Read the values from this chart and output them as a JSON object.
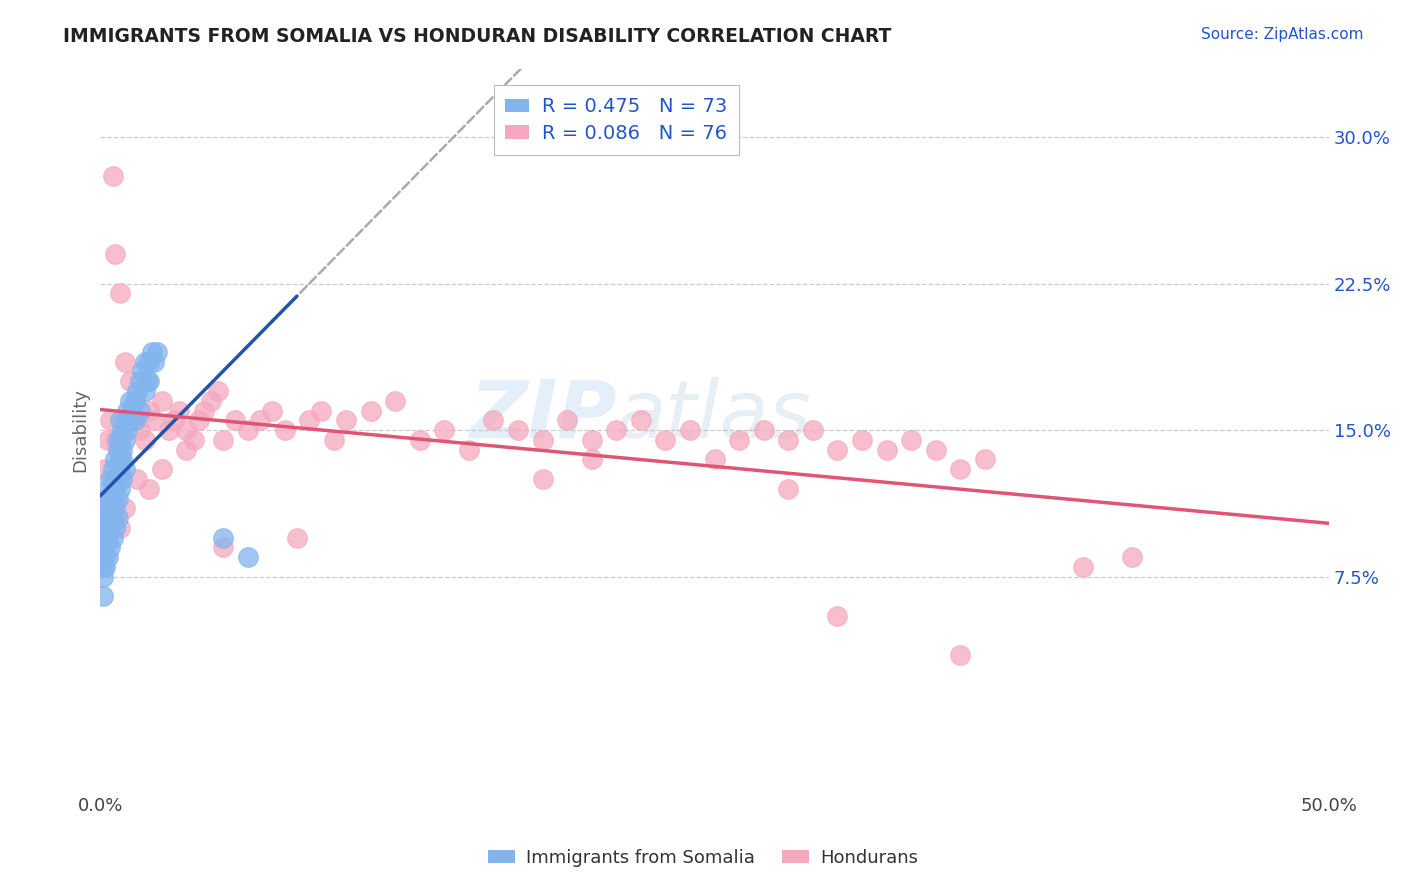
{
  "title": "IMMIGRANTS FROM SOMALIA VS HONDURAN DISABILITY CORRELATION CHART",
  "source_text": "Source: ZipAtlas.com",
  "ylabel": "Disability",
  "xlim": [
    0.0,
    0.5
  ],
  "ylim": [
    -0.035,
    0.335
  ],
  "yticks": [
    0.075,
    0.15,
    0.225,
    0.3
  ],
  "ytick_labels": [
    "7.5%",
    "15.0%",
    "22.5%",
    "30.0%"
  ],
  "xticks": [
    0.0,
    0.5
  ],
  "xtick_labels": [
    "0.0%",
    "50.0%"
  ],
  "grid_color": "#cccccc",
  "background_color": "#ffffff",
  "somalia_color": "#82b4ee",
  "honduras_color": "#f5a8be",
  "somalia_line_color": "#2255aa",
  "honduras_line_color": "#e05575",
  "R_somalia": 0.475,
  "N_somalia": 73,
  "R_honduras": 0.086,
  "N_honduras": 76,
  "legend_label_somalia": "Immigrants from Somalia",
  "legend_label_honduras": "Hondurans",
  "watermark_zip": "ZIP",
  "watermark_atlas": "atlas",
  "title_color": "#222222",
  "axis_label_color": "#666666",
  "legend_text_color": "#2255cc",
  "somalia_scatter": [
    [
      0.001,
      0.095
    ],
    [
      0.001,
      0.1
    ],
    [
      0.001,
      0.11
    ],
    [
      0.001,
      0.105
    ],
    [
      0.002,
      0.105
    ],
    [
      0.002,
      0.115
    ],
    [
      0.002,
      0.1
    ],
    [
      0.003,
      0.11
    ],
    [
      0.003,
      0.12
    ],
    [
      0.003,
      0.105
    ],
    [
      0.004,
      0.115
    ],
    [
      0.004,
      0.125
    ],
    [
      0.004,
      0.11
    ],
    [
      0.005,
      0.12
    ],
    [
      0.005,
      0.13
    ],
    [
      0.005,
      0.115
    ],
    [
      0.006,
      0.125
    ],
    [
      0.006,
      0.135
    ],
    [
      0.006,
      0.12
    ],
    [
      0.007,
      0.13
    ],
    [
      0.007,
      0.14
    ],
    [
      0.007,
      0.125
    ],
    [
      0.008,
      0.135
    ],
    [
      0.008,
      0.145
    ],
    [
      0.008,
      0.13
    ],
    [
      0.009,
      0.14
    ],
    [
      0.009,
      0.15
    ],
    [
      0.009,
      0.135
    ],
    [
      0.01,
      0.145
    ],
    [
      0.01,
      0.155
    ],
    [
      0.011,
      0.15
    ],
    [
      0.011,
      0.16
    ],
    [
      0.012,
      0.155
    ],
    [
      0.012,
      0.165
    ],
    [
      0.013,
      0.16
    ],
    [
      0.014,
      0.165
    ],
    [
      0.015,
      0.17
    ],
    [
      0.016,
      0.175
    ],
    [
      0.017,
      0.18
    ],
    [
      0.018,
      0.185
    ],
    [
      0.019,
      0.175
    ],
    [
      0.02,
      0.185
    ],
    [
      0.021,
      0.19
    ],
    [
      0.022,
      0.185
    ],
    [
      0.023,
      0.19
    ],
    [
      0.001,
      0.09
    ],
    [
      0.002,
      0.095
    ],
    [
      0.001,
      0.08
    ],
    [
      0.002,
      0.085
    ],
    [
      0.003,
      0.095
    ],
    [
      0.004,
      0.1
    ],
    [
      0.005,
      0.105
    ],
    [
      0.006,
      0.11
    ],
    [
      0.007,
      0.115
    ],
    [
      0.008,
      0.12
    ],
    [
      0.009,
      0.125
    ],
    [
      0.01,
      0.13
    ],
    [
      0.003,
      0.085
    ],
    [
      0.004,
      0.09
    ],
    [
      0.005,
      0.095
    ],
    [
      0.006,
      0.1
    ],
    [
      0.007,
      0.105
    ],
    [
      0.002,
      0.08
    ],
    [
      0.001,
      0.075
    ],
    [
      0.016,
      0.16
    ],
    [
      0.014,
      0.155
    ],
    [
      0.018,
      0.17
    ],
    [
      0.02,
      0.175
    ],
    [
      0.008,
      0.155
    ],
    [
      0.007,
      0.145
    ],
    [
      0.05,
      0.095
    ],
    [
      0.06,
      0.085
    ],
    [
      0.001,
      0.065
    ]
  ],
  "honduras_scatter": [
    [
      0.002,
      0.13
    ],
    [
      0.003,
      0.145
    ],
    [
      0.005,
      0.28
    ],
    [
      0.006,
      0.24
    ],
    [
      0.008,
      0.22
    ],
    [
      0.01,
      0.185
    ],
    [
      0.012,
      0.175
    ],
    [
      0.014,
      0.165
    ],
    [
      0.015,
      0.155
    ],
    [
      0.016,
      0.15
    ],
    [
      0.018,
      0.145
    ],
    [
      0.02,
      0.16
    ],
    [
      0.022,
      0.155
    ],
    [
      0.025,
      0.165
    ],
    [
      0.028,
      0.15
    ],
    [
      0.03,
      0.155
    ],
    [
      0.032,
      0.16
    ],
    [
      0.035,
      0.15
    ],
    [
      0.038,
      0.145
    ],
    [
      0.04,
      0.155
    ],
    [
      0.042,
      0.16
    ],
    [
      0.045,
      0.165
    ],
    [
      0.048,
      0.17
    ],
    [
      0.05,
      0.145
    ],
    [
      0.055,
      0.155
    ],
    [
      0.06,
      0.15
    ],
    [
      0.065,
      0.155
    ],
    [
      0.07,
      0.16
    ],
    [
      0.075,
      0.15
    ],
    [
      0.08,
      0.095
    ],
    [
      0.085,
      0.155
    ],
    [
      0.09,
      0.16
    ],
    [
      0.095,
      0.145
    ],
    [
      0.1,
      0.155
    ],
    [
      0.11,
      0.16
    ],
    [
      0.12,
      0.165
    ],
    [
      0.13,
      0.145
    ],
    [
      0.14,
      0.15
    ],
    [
      0.15,
      0.14
    ],
    [
      0.16,
      0.155
    ],
    [
      0.17,
      0.15
    ],
    [
      0.18,
      0.145
    ],
    [
      0.19,
      0.155
    ],
    [
      0.2,
      0.145
    ],
    [
      0.21,
      0.15
    ],
    [
      0.22,
      0.155
    ],
    [
      0.23,
      0.145
    ],
    [
      0.24,
      0.15
    ],
    [
      0.25,
      0.135
    ],
    [
      0.26,
      0.145
    ],
    [
      0.27,
      0.15
    ],
    [
      0.28,
      0.145
    ],
    [
      0.29,
      0.15
    ],
    [
      0.3,
      0.14
    ],
    [
      0.31,
      0.145
    ],
    [
      0.32,
      0.14
    ],
    [
      0.33,
      0.145
    ],
    [
      0.34,
      0.14
    ],
    [
      0.35,
      0.13
    ],
    [
      0.36,
      0.135
    ],
    [
      0.035,
      0.14
    ],
    [
      0.025,
      0.13
    ],
    [
      0.02,
      0.12
    ],
    [
      0.015,
      0.125
    ],
    [
      0.01,
      0.11
    ],
    [
      0.008,
      0.1
    ],
    [
      0.006,
      0.145
    ],
    [
      0.004,
      0.155
    ],
    [
      0.42,
      0.085
    ],
    [
      0.4,
      0.08
    ],
    [
      0.35,
      0.035
    ],
    [
      0.3,
      0.055
    ],
    [
      0.28,
      0.12
    ],
    [
      0.05,
      0.09
    ],
    [
      0.2,
      0.135
    ],
    [
      0.18,
      0.125
    ]
  ]
}
